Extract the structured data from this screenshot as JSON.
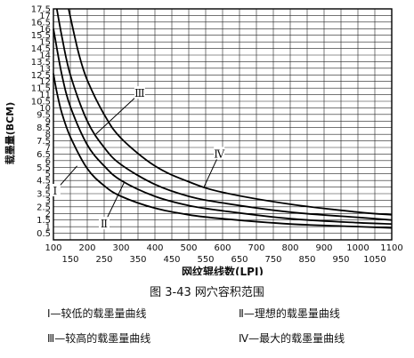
{
  "chart_data": {
    "type": "line",
    "title": "图 3-43  网穴容积范围",
    "xlabel": "网纹辊线数(LPI)",
    "ylabel": "载墨量(BCM)",
    "xlim": [
      100,
      1100
    ],
    "ylim": [
      0,
      17.5
    ],
    "x_ticks_upper": [
      "100",
      "200",
      "300",
      "400",
      "500",
      "600",
      "700",
      "800",
      "900",
      "1000",
      "1100"
    ],
    "x_ticks_lower": [
      "150",
      "250",
      "350",
      "450",
      "550",
      "650",
      "750",
      "850",
      "950",
      "1050"
    ],
    "y_ticks": [
      "0.5",
      "1",
      "1.5",
      "2",
      "2.5",
      "3",
      "3.5",
      "4",
      "4.5",
      "5",
      "5.5",
      "6",
      "6.5",
      "7",
      "7.5",
      "8",
      "8.5",
      "9",
      "9.5",
      "10",
      "10.5",
      "11",
      "11.5",
      "12",
      "12.5",
      "13",
      "13.5",
      "14",
      "14.5",
      "15",
      "15.5",
      "16",
      "16.5",
      "17",
      "17.5"
    ],
    "grid": true,
    "series": [
      {
        "name": "Ⅰ",
        "label": "Ⅰ—较低的载墨量曲线",
        "x": [
          100,
          110,
          125,
          150,
          200,
          250,
          300,
          400,
          500,
          600,
          800,
          1000,
          1100
        ],
        "values": [
          12.6,
          11.2,
          9.6,
          7.8,
          5.4,
          4.1,
          3.3,
          2.4,
          1.9,
          1.6,
          1.2,
          1.0,
          0.9
        ]
      },
      {
        "name": "Ⅱ",
        "label": "Ⅱ—理想的载墨量曲线",
        "x": [
          100,
          125,
          150,
          200,
          250,
          300,
          400,
          500,
          600,
          800,
          1000,
          1100
        ],
        "values": [
          16.0,
          12.5,
          10.1,
          7.2,
          5.6,
          4.5,
          3.3,
          2.6,
          2.2,
          1.6,
          1.3,
          1.2
        ]
      },
      {
        "name": "Ⅲ",
        "label": "Ⅲ—较高的载墨量曲线",
        "x": [
          110,
          125,
          150,
          200,
          250,
          300,
          400,
          500,
          600,
          800,
          1000,
          1100
        ],
        "values": [
          17.5,
          15.4,
          12.5,
          9.0,
          7.0,
          5.7,
          4.2,
          3.3,
          2.8,
          2.1,
          1.7,
          1.5
        ]
      },
      {
        "name": "Ⅳ",
        "label": "Ⅳ—最大的载墨量曲线",
        "x": [
          145,
          150,
          175,
          200,
          250,
          300,
          400,
          500,
          600,
          800,
          1000,
          1100
        ],
        "values": [
          17.5,
          16.9,
          14.1,
          12.1,
          9.5,
          7.7,
          5.6,
          4.4,
          3.6,
          2.7,
          2.1,
          1.9
        ]
      }
    ]
  },
  "caption": "图 3-43  网穴容积范围",
  "legend": {
    "i": "Ⅰ—较低的载墨量曲线",
    "ii": "Ⅱ—理想的载墨量曲线",
    "iii": "Ⅲ—较高的载墨量曲线",
    "iv": "Ⅳ—最大的载墨量曲线"
  }
}
